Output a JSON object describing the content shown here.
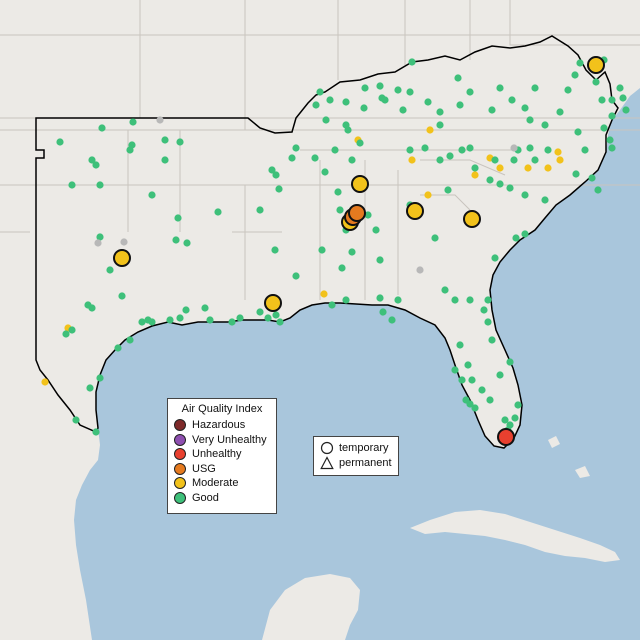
{
  "legend": {
    "title": "Air Quality Index",
    "categories": [
      {
        "label": "Hazardous",
        "color": "#7e2a2a"
      },
      {
        "label": "Very Unhealthy",
        "color": "#8e4fb0"
      },
      {
        "label": "Unhealthy",
        "color": "#e8402f"
      },
      {
        "label": "USG",
        "color": "#e57a1f"
      },
      {
        "label": "Moderate",
        "color": "#f2c21b"
      },
      {
        "label": "Good",
        "color": "#3ec07a"
      }
    ],
    "shapes": [
      {
        "label": "temporary",
        "icon": "circle-icon"
      },
      {
        "label": "permanent",
        "icon": "triangle-icon"
      }
    ]
  },
  "colors": {
    "land": "#eceae6",
    "water": "#a9c6dc",
    "border": "#c9c4be",
    "region_outline": "#000000",
    "no_data": "#b8b8b8"
  }
}
